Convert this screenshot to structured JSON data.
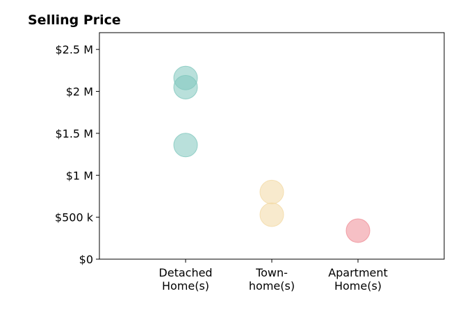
{
  "chart_data": {
    "type": "scatter",
    "title": "Selling Price",
    "xlabel": "",
    "ylabel": "",
    "categories": [
      [
        "Detached",
        "Home(s)"
      ],
      [
        "Town-",
        "home(s)"
      ],
      [
        "Apartment",
        "Home(s)"
      ]
    ],
    "xlim": [
      0,
      4
    ],
    "ylim": [
      0,
      2700000
    ],
    "yticks": [
      {
        "value": 0,
        "label": "$0"
      },
      {
        "value": 500000,
        "label": "$500 k"
      },
      {
        "value": 1000000,
        "label": "$1 M"
      },
      {
        "value": 1500000,
        "label": "$1.5 M"
      },
      {
        "value": 2000000,
        "label": "$2 M"
      },
      {
        "value": 2500000,
        "label": "$2.5 M"
      }
    ],
    "grid": false,
    "series": [
      {
        "category_index": 0,
        "color": "#7fc7bd",
        "values": [
          2160000,
          2050000,
          1360000
        ]
      },
      {
        "category_index": 1,
        "color": "#f3d9a4",
        "values": [
          800000,
          530000
        ]
      },
      {
        "category_index": 2,
        "color": "#ef8d96",
        "values": [
          340000
        ]
      }
    ]
  }
}
